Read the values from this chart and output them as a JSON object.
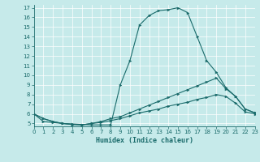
{
  "xlabel": "Humidex (Indice chaleur)",
  "xlim": [
    0,
    23
  ],
  "ylim": [
    5,
    17
  ],
  "xticks": [
    0,
    1,
    2,
    3,
    4,
    5,
    6,
    7,
    8,
    9,
    10,
    11,
    12,
    13,
    14,
    15,
    16,
    17,
    18,
    19,
    20,
    21,
    22,
    23
  ],
  "yticks": [
    5,
    6,
    7,
    8,
    9,
    10,
    11,
    12,
    13,
    14,
    15,
    16,
    17
  ],
  "bg_color": "#c6eaea",
  "line_color": "#1a6b6b",
  "line1_x": [
    0,
    1,
    2,
    3,
    4,
    5,
    6,
    7,
    8,
    9,
    10,
    11,
    12,
    13,
    14,
    15,
    16,
    17,
    18,
    19,
    20,
    21,
    22,
    23
  ],
  "line1_y": [
    6.0,
    5.2,
    5.1,
    5.0,
    4.95,
    4.9,
    4.85,
    4.85,
    4.85,
    9.0,
    11.5,
    15.2,
    16.2,
    16.7,
    16.8,
    17.0,
    16.5,
    14.0,
    11.5,
    10.3,
    8.7,
    7.8,
    6.5,
    6.1
  ],
  "line2_x": [
    0,
    1,
    2,
    3,
    4,
    5,
    6,
    7,
    8,
    9,
    10,
    11,
    12,
    13,
    14,
    15,
    16,
    17,
    18,
    19,
    20,
    21,
    22,
    23
  ],
  "line2_y": [
    6.0,
    5.5,
    5.2,
    5.0,
    4.9,
    4.85,
    5.0,
    5.2,
    5.5,
    5.7,
    6.1,
    6.5,
    6.9,
    7.3,
    7.7,
    8.1,
    8.5,
    8.9,
    9.3,
    9.7,
    8.6,
    7.8,
    6.5,
    6.1
  ],
  "line3_x": [
    0,
    1,
    2,
    3,
    4,
    5,
    6,
    7,
    8,
    9,
    10,
    11,
    12,
    13,
    14,
    15,
    16,
    17,
    18,
    19,
    20,
    21,
    22,
    23
  ],
  "line3_y": [
    6.0,
    5.5,
    5.2,
    5.0,
    4.9,
    4.85,
    5.0,
    5.1,
    5.3,
    5.5,
    5.8,
    6.1,
    6.3,
    6.5,
    6.8,
    7.0,
    7.2,
    7.5,
    7.7,
    8.0,
    7.8,
    7.1,
    6.2,
    6.0
  ]
}
